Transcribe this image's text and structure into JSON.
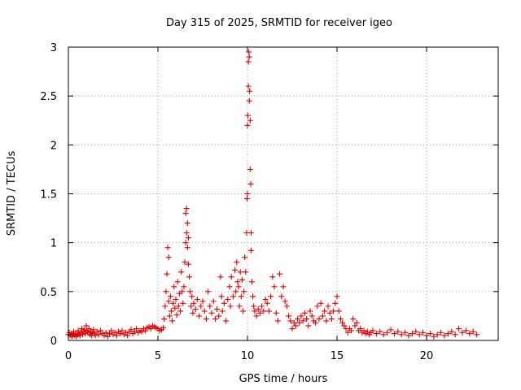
{
  "chart_data": {
    "type": "scatter",
    "title": "Day 315 of 2025, SRMTID for receiver igeo",
    "xlabel": "GPS time / hours",
    "ylabel": "SRMTID / TECUs",
    "xlim": [
      0,
      24
    ],
    "ylim": [
      0,
      3
    ],
    "x_ticks": [
      0,
      5,
      10,
      15,
      20
    ],
    "x_tick_labels": [
      "0",
      "5",
      "10",
      "15",
      "20"
    ],
    "y_ticks": [
      0,
      0.5,
      1,
      1.5,
      2,
      2.5,
      3
    ],
    "y_tick_labels": [
      "0",
      "0.5",
      "1",
      "1.5",
      "2",
      "2.5",
      "3"
    ],
    "grid": true,
    "marker": "+",
    "series": [
      {
        "name": "SRMTID",
        "color": "#e00000",
        "points": [
          [
            0.0,
            0.06
          ],
          [
            0.05,
            0.08
          ],
          [
            0.1,
            0.05
          ],
          [
            0.15,
            0.07
          ],
          [
            0.2,
            0.04
          ],
          [
            0.25,
            0.06
          ],
          [
            0.3,
            0.09
          ],
          [
            0.35,
            0.05
          ],
          [
            0.4,
            0.07
          ],
          [
            0.45,
            0.04
          ],
          [
            0.5,
            0.06
          ],
          [
            0.55,
            0.1
          ],
          [
            0.6,
            0.07
          ],
          [
            0.65,
            0.05
          ],
          [
            0.7,
            0.08
          ],
          [
            0.75,
            0.12
          ],
          [
            0.8,
            0.06
          ],
          [
            0.85,
            0.09
          ],
          [
            0.9,
            0.11
          ],
          [
            0.95,
            0.07
          ],
          [
            1.0,
            0.15
          ],
          [
            1.05,
            0.1
          ],
          [
            1.1,
            0.08
          ],
          [
            1.15,
            0.12
          ],
          [
            1.2,
            0.06
          ],
          [
            1.25,
            0.09
          ],
          [
            1.3,
            0.05
          ],
          [
            1.35,
            0.08
          ],
          [
            1.4,
            0.11
          ],
          [
            1.45,
            0.07
          ],
          [
            1.5,
            0.05
          ],
          [
            1.6,
            0.09
          ],
          [
            1.7,
            0.06
          ],
          [
            1.8,
            0.1
          ],
          [
            1.9,
            0.07
          ],
          [
            2.0,
            0.05
          ],
          [
            2.1,
            0.08
          ],
          [
            2.2,
            0.04
          ],
          [
            2.3,
            0.07
          ],
          [
            2.4,
            0.1
          ],
          [
            2.5,
            0.06
          ],
          [
            2.6,
            0.08
          ],
          [
            2.7,
            0.05
          ],
          [
            2.8,
            0.09
          ],
          [
            2.9,
            0.07
          ],
          [
            3.0,
            0.1
          ],
          [
            3.1,
            0.06
          ],
          [
            3.2,
            0.08
          ],
          [
            3.3,
            0.05
          ],
          [
            3.4,
            0.09
          ],
          [
            3.5,
            0.11
          ],
          [
            3.6,
            0.07
          ],
          [
            3.7,
            0.09
          ],
          [
            3.8,
            0.12
          ],
          [
            3.9,
            0.08
          ],
          [
            4.0,
            0.1
          ],
          [
            4.1,
            0.09
          ],
          [
            4.2,
            0.12
          ],
          [
            4.3,
            0.1
          ],
          [
            4.4,
            0.13
          ],
          [
            4.5,
            0.14
          ],
          [
            4.6,
            0.12
          ],
          [
            4.7,
            0.15
          ],
          [
            4.8,
            0.14
          ],
          [
            4.9,
            0.13
          ],
          [
            5.0,
            0.12
          ],
          [
            5.1,
            0.1
          ],
          [
            5.2,
            0.11
          ],
          [
            5.3,
            0.13
          ],
          [
            5.35,
            0.22
          ],
          [
            5.4,
            0.35
          ],
          [
            5.45,
            0.5
          ],
          [
            5.5,
            0.68
          ],
          [
            5.55,
            0.95
          ],
          [
            5.6,
            0.85
          ],
          [
            5.6,
            0.4
          ],
          [
            5.65,
            0.25
          ],
          [
            5.7,
            0.45
          ],
          [
            5.75,
            0.3
          ],
          [
            5.8,
            0.2
          ],
          [
            5.85,
            0.38
          ],
          [
            5.9,
            0.55
          ],
          [
            5.95,
            0.33
          ],
          [
            6.0,
            0.42
          ],
          [
            6.05,
            0.26
          ],
          [
            6.1,
            0.6
          ],
          [
            6.15,
            0.35
          ],
          [
            6.2,
            0.48
          ],
          [
            6.25,
            0.3
          ],
          [
            6.3,
            0.7
          ],
          [
            6.35,
            0.5
          ],
          [
            6.4,
            0.38
          ],
          [
            6.45,
            0.55
          ],
          [
            6.5,
            0.8
          ],
          [
            6.55,
            1.0
          ],
          [
            6.55,
            1.3
          ],
          [
            6.6,
            1.35
          ],
          [
            6.6,
            1.1
          ],
          [
            6.65,
            1.2
          ],
          [
            6.65,
            0.95
          ],
          [
            6.7,
            1.05
          ],
          [
            6.7,
            0.78
          ],
          [
            6.75,
            0.65
          ],
          [
            6.8,
            0.5
          ],
          [
            6.85,
            0.35
          ],
          [
            6.9,
            0.45
          ],
          [
            6.95,
            0.28
          ],
          [
            7.0,
            0.38
          ],
          [
            7.1,
            0.32
          ],
          [
            7.2,
            0.42
          ],
          [
            7.3,
            0.25
          ],
          [
            7.4,
            0.35
          ],
          [
            7.5,
            0.4
          ],
          [
            7.6,
            0.3
          ],
          [
            7.7,
            0.22
          ],
          [
            7.8,
            0.5
          ],
          [
            7.9,
            0.35
          ],
          [
            8.0,
            0.28
          ],
          [
            8.1,
            0.4
          ],
          [
            8.2,
            0.22
          ],
          [
            8.3,
            0.32
          ],
          [
            8.4,
            0.25
          ],
          [
            8.5,
            0.65
          ],
          [
            8.55,
            0.45
          ],
          [
            8.6,
            0.3
          ],
          [
            8.7,
            0.38
          ],
          [
            8.8,
            0.2
          ],
          [
            8.9,
            0.42
          ],
          [
            9.0,
            0.55
          ],
          [
            9.05,
            0.35
          ],
          [
            9.1,
            0.65
          ],
          [
            9.2,
            0.45
          ],
          [
            9.3,
            0.72
          ],
          [
            9.35,
            0.5
          ],
          [
            9.4,
            0.8
          ],
          [
            9.45,
            0.6
          ],
          [
            9.5,
            0.55
          ],
          [
            9.55,
            0.35
          ],
          [
            9.6,
            0.7
          ],
          [
            9.65,
            0.45
          ],
          [
            9.7,
            0.62
          ],
          [
            9.75,
            0.3
          ],
          [
            9.8,
            0.5
          ],
          [
            9.85,
            0.85
          ],
          [
            9.9,
            0.7
          ],
          [
            9.95,
            1.1
          ],
          [
            9.98,
            1.45
          ],
          [
            10.0,
            1.5
          ],
          [
            10.0,
            2.2
          ],
          [
            10.02,
            2.3
          ],
          [
            10.05,
            2.6
          ],
          [
            10.05,
            2.85
          ],
          [
            10.08,
            2.95
          ],
          [
            10.1,
            2.9
          ],
          [
            10.1,
            2.45
          ],
          [
            10.12,
            2.55
          ],
          [
            10.15,
            2.25
          ],
          [
            10.15,
            1.75
          ],
          [
            10.18,
            1.6
          ],
          [
            10.2,
            1.1
          ],
          [
            10.2,
            0.92
          ],
          [
            10.25,
            0.6
          ],
          [
            10.3,
            0.45
          ],
          [
            10.35,
            0.35
          ],
          [
            10.4,
            0.3
          ],
          [
            10.5,
            0.25
          ],
          [
            10.6,
            0.32
          ],
          [
            10.7,
            0.28
          ],
          [
            10.8,
            0.35
          ],
          [
            10.9,
            0.3
          ],
          [
            11.0,
            0.42
          ],
          [
            11.1,
            0.38
          ],
          [
            11.2,
            0.3
          ],
          [
            11.3,
            0.45
          ],
          [
            11.4,
            0.65
          ],
          [
            11.5,
            0.55
          ],
          [
            11.6,
            0.28
          ],
          [
            11.7,
            0.2
          ],
          [
            11.8,
            0.68
          ],
          [
            11.9,
            0.45
          ],
          [
            12.0,
            0.55
          ],
          [
            12.1,
            0.4
          ],
          [
            12.2,
            0.35
          ],
          [
            12.3,
            0.25
          ],
          [
            12.4,
            0.2
          ],
          [
            12.5,
            0.12
          ],
          [
            12.6,
            0.18
          ],
          [
            12.7,
            0.15
          ],
          [
            12.8,
            0.22
          ],
          [
            12.9,
            0.18
          ],
          [
            13.0,
            0.25
          ],
          [
            13.1,
            0.2
          ],
          [
            13.2,
            0.28
          ],
          [
            13.3,
            0.22
          ],
          [
            13.4,
            0.15
          ],
          [
            13.5,
            0.3
          ],
          [
            13.6,
            0.25
          ],
          [
            13.7,
            0.2
          ],
          [
            13.8,
            0.18
          ],
          [
            13.9,
            0.35
          ],
          [
            14.0,
            0.22
          ],
          [
            14.1,
            0.38
          ],
          [
            14.2,
            0.25
          ],
          [
            14.3,
            0.3
          ],
          [
            14.4,
            0.2
          ],
          [
            14.5,
            0.35
          ],
          [
            14.6,
            0.28
          ],
          [
            14.7,
            0.22
          ],
          [
            14.8,
            0.3
          ],
          [
            14.9,
            0.38
          ],
          [
            15.0,
            0.45
          ],
          [
            15.1,
            0.3
          ],
          [
            15.2,
            0.22
          ],
          [
            15.3,
            0.18
          ],
          [
            15.4,
            0.15
          ],
          [
            15.5,
            0.12
          ],
          [
            15.6,
            0.08
          ],
          [
            15.7,
            0.12
          ],
          [
            15.8,
            0.1
          ],
          [
            15.9,
            0.22
          ],
          [
            16.0,
            0.15
          ],
          [
            16.1,
            0.18
          ],
          [
            16.2,
            0.1
          ],
          [
            16.3,
            0.12
          ],
          [
            16.4,
            0.08
          ],
          [
            16.5,
            0.1
          ],
          [
            16.6,
            0.07
          ],
          [
            16.7,
            0.09
          ],
          [
            16.8,
            0.06
          ],
          [
            16.9,
            0.08
          ],
          [
            17.0,
            0.1
          ],
          [
            17.2,
            0.07
          ],
          [
            17.4,
            0.09
          ],
          [
            17.6,
            0.06
          ],
          [
            17.8,
            0.08
          ],
          [
            18.0,
            0.11
          ],
          [
            18.2,
            0.07
          ],
          [
            18.4,
            0.09
          ],
          [
            18.6,
            0.06
          ],
          [
            18.8,
            0.08
          ],
          [
            19.0,
            0.05
          ],
          [
            19.2,
            0.07
          ],
          [
            19.4,
            0.09
          ],
          [
            19.6,
            0.06
          ],
          [
            19.8,
            0.08
          ],
          [
            20.0,
            0.05
          ],
          [
            20.2,
            0.07
          ],
          [
            20.4,
            0.04
          ],
          [
            20.6,
            0.06
          ],
          [
            20.8,
            0.08
          ],
          [
            21.0,
            0.05
          ],
          [
            21.2,
            0.07
          ],
          [
            21.4,
            0.09
          ],
          [
            21.6,
            0.06
          ],
          [
            21.8,
            0.12
          ],
          [
            22.0,
            0.08
          ],
          [
            22.2,
            0.1
          ],
          [
            22.4,
            0.07
          ],
          [
            22.6,
            0.09
          ],
          [
            22.8,
            0.06
          ]
        ]
      }
    ]
  }
}
